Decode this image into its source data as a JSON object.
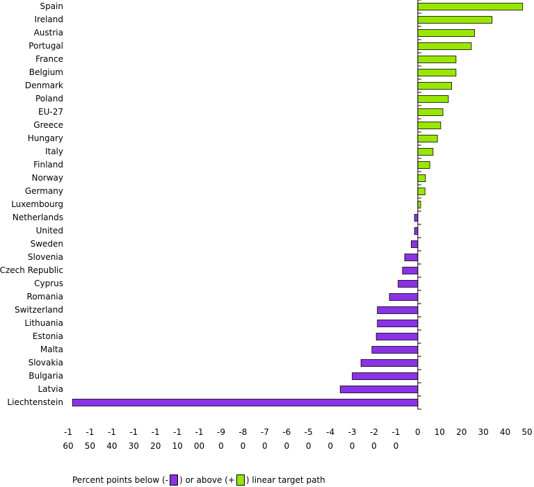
{
  "chart_data": {
    "type": "bar",
    "orientation": "horizontal",
    "title": "",
    "xlabel": "",
    "ylabel": "",
    "xlim": [
      -160,
      50
    ],
    "categories": [
      "Spain",
      "Ireland",
      "Austria",
      "Portugal",
      "France",
      "Belgium",
      "Denmark",
      "Poland",
      "EU-27",
      "Greece",
      "Hungary",
      "Italy",
      "Finland",
      "Norway",
      "Germany",
      "Luxembourg",
      "Netherlands",
      "United",
      "Sweden",
      "Slovenia",
      "Czech Republic",
      "Cyprus",
      "Romania",
      "Switzerland",
      "Lithuania",
      "Estonia",
      "Malta",
      "Slovakia",
      "Bulgaria",
      "Latvia",
      "Liechtenstein"
    ],
    "values": [
      48,
      34,
      26,
      24.5,
      17.5,
      17.5,
      15.5,
      14,
      11.5,
      10.5,
      9,
      7,
      5.5,
      3.5,
      3.3,
      1.3,
      -1.5,
      -1.5,
      -3,
      -6,
      -7,
      -9,
      -13,
      -18.5,
      -18.5,
      -19,
      -21,
      -26,
      -30,
      -35.5,
      -158
    ],
    "colors": {
      "positive": "#99e600",
      "negative": "#8a33e6",
      "axis": "#000000"
    },
    "xticks": [
      {
        "value": -160,
        "line1": "-1",
        "line2": "60"
      },
      {
        "value": -150,
        "line1": "-1",
        "line2": "50"
      },
      {
        "value": -140,
        "line1": "-1",
        "line2": "40"
      },
      {
        "value": -130,
        "line1": "-1",
        "line2": "30"
      },
      {
        "value": -120,
        "line1": "-1",
        "line2": "20"
      },
      {
        "value": -110,
        "line1": "-1",
        "line2": "10"
      },
      {
        "value": -100,
        "line1": "-1",
        "line2": "00"
      },
      {
        "value": -90,
        "line1": "-9",
        "line2": "0"
      },
      {
        "value": -80,
        "line1": "-8",
        "line2": "0"
      },
      {
        "value": -70,
        "line1": "-7",
        "line2": "0"
      },
      {
        "value": -60,
        "line1": "-6",
        "line2": "0"
      },
      {
        "value": -50,
        "line1": "-5",
        "line2": "0"
      },
      {
        "value": -40,
        "line1": "-4",
        "line2": "0"
      },
      {
        "value": -30,
        "line1": "-3",
        "line2": "0"
      },
      {
        "value": -20,
        "line1": "-2",
        "line2": "0"
      },
      {
        "value": -10,
        "line1": "-1",
        "line2": "0"
      },
      {
        "value": 0,
        "line1": "0",
        "line2": ""
      },
      {
        "value": 10,
        "line1": "10",
        "line2": ""
      },
      {
        "value": 20,
        "line1": "20",
        "line2": ""
      },
      {
        "value": 30,
        "line1": "30",
        "line2": ""
      },
      {
        "value": 40,
        "line1": "40",
        "line2": ""
      },
      {
        "value": 50,
        "line1": "50",
        "line2": ""
      }
    ],
    "legend": {
      "placement": "bottom",
      "text_before": "Percent points below (-",
      "text_middle": ") or above (+",
      "text_after": ") linear target path"
    }
  }
}
